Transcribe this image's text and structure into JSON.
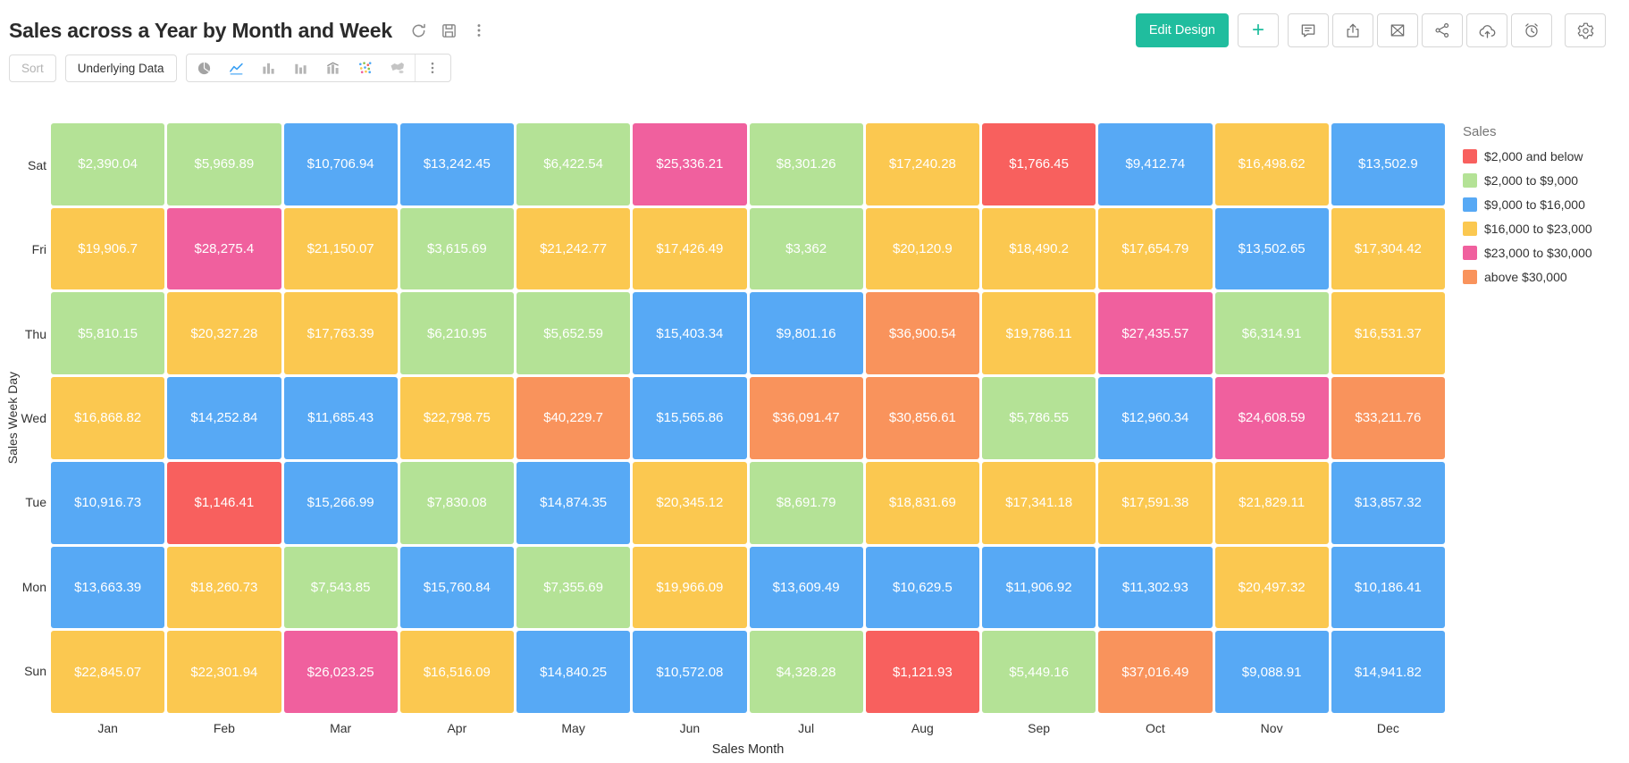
{
  "header": {
    "title": "Sales across a Year by Month and Week",
    "title_action_icons": [
      "refresh-icon",
      "save-icon",
      "more-vertical-icon"
    ],
    "edit_design_label": "Edit Design",
    "add_label": "+",
    "action_icons": [
      "comment-icon",
      "export-icon",
      "email-icon",
      "share-icon",
      "cloud-upload-icon",
      "schedule-icon",
      "settings-icon"
    ],
    "accent_color": "#20BD9E"
  },
  "toolbar": {
    "sort_label": "Sort",
    "underlying_data_label": "Underlying Data",
    "chart_type_icons": [
      "pie-chart-icon",
      "line-chart-icon",
      "bar-chart-icon",
      "clustered-bar-icon",
      "combo-chart-icon",
      "scatter-plot-icon",
      "map-chart-icon",
      "more-vertical-icon"
    ],
    "active_chart_type": "line-chart-icon"
  },
  "chart_data": {
    "type": "heatmap",
    "title": "Sales across a Year by Month and Week",
    "xlabel": "Sales Month",
    "ylabel": "Sales Week Day",
    "legend_title": "Sales",
    "legend_position": "right",
    "x": [
      "Jan",
      "Feb",
      "Mar",
      "Apr",
      "May",
      "Jun",
      "Jul",
      "Aug",
      "Sep",
      "Oct",
      "Nov",
      "Dec"
    ],
    "y": [
      "Sat",
      "Fri",
      "Thu",
      "Wed",
      "Tue",
      "Mon",
      "Sun"
    ],
    "bins": {
      "limits": [
        2000,
        9000,
        16000,
        23000,
        30000
      ],
      "colors": [
        "#F8605E",
        "#B4E296",
        "#57A9F5",
        "#FBC850",
        "#F0609E",
        "#F9935C"
      ],
      "labels": [
        "$2,000 and below",
        "$2,000 to $9,000",
        "$9,000 to $16,000",
        "$16,000 to $23,000",
        "$23,000 to $30,000",
        "above $30,000"
      ]
    },
    "series": [
      {
        "name": "Sat",
        "values": [
          2390.04,
          5969.89,
          10706.94,
          13242.45,
          6422.54,
          25336.21,
          8301.26,
          17240.28,
          1766.45,
          9412.74,
          16498.62,
          13502.9
        ],
        "labels": [
          "$2,390.04",
          "$5,969.89",
          "$10,706.94",
          "$13,242.45",
          "$6,422.54",
          "$25,336.21",
          "$8,301.26",
          "$17,240.28",
          "$1,766.45",
          "$9,412.74",
          "$16,498.62",
          "$13,502.9"
        ]
      },
      {
        "name": "Fri",
        "values": [
          19906.7,
          28275.4,
          21150.07,
          3615.69,
          21242.77,
          17426.49,
          3362,
          20120.9,
          18490.2,
          17654.79,
          13502.65,
          17304.42
        ],
        "labels": [
          "$19,906.7",
          "$28,275.4",
          "$21,150.07",
          "$3,615.69",
          "$21,242.77",
          "$17,426.49",
          "$3,362",
          "$20,120.9",
          "$18,490.2",
          "$17,654.79",
          "$13,502.65",
          "$17,304.42"
        ]
      },
      {
        "name": "Thu",
        "values": [
          5810.15,
          20327.28,
          17763.39,
          6210.95,
          5652.59,
          15403.34,
          9801.16,
          36900.54,
          19786.11,
          27435.57,
          6314.91,
          16531.37
        ],
        "labels": [
          "$5,810.15",
          "$20,327.28",
          "$17,763.39",
          "$6,210.95",
          "$5,652.59",
          "$15,403.34",
          "$9,801.16",
          "$36,900.54",
          "$19,786.11",
          "$27,435.57",
          "$6,314.91",
          "$16,531.37"
        ]
      },
      {
        "name": "Wed",
        "values": [
          16868.82,
          14252.84,
          11685.43,
          22798.75,
          40229.7,
          15565.86,
          36091.47,
          30856.61,
          5786.55,
          12960.34,
          24608.59,
          33211.76
        ],
        "labels": [
          "$16,868.82",
          "$14,252.84",
          "$11,685.43",
          "$22,798.75",
          "$40,229.7",
          "$15,565.86",
          "$36,091.47",
          "$30,856.61",
          "$5,786.55",
          "$12,960.34",
          "$24,608.59",
          "$33,211.76"
        ]
      },
      {
        "name": "Tue",
        "values": [
          10916.73,
          1146.41,
          15266.99,
          7830.08,
          14874.35,
          20345.12,
          8691.79,
          18831.69,
          17341.18,
          17591.38,
          21829.11,
          13857.32
        ],
        "labels": [
          "$10,916.73",
          "$1,146.41",
          "$15,266.99",
          "$7,830.08",
          "$14,874.35",
          "$20,345.12",
          "$8,691.79",
          "$18,831.69",
          "$17,341.18",
          "$17,591.38",
          "$21,829.11",
          "$13,857.32"
        ]
      },
      {
        "name": "Mon",
        "values": [
          13663.39,
          18260.73,
          7543.85,
          15760.84,
          7355.69,
          19966.09,
          13609.49,
          10629.5,
          11906.92,
          11302.93,
          20497.32,
          10186.41
        ],
        "labels": [
          "$13,663.39",
          "$18,260.73",
          "$7,543.85",
          "$15,760.84",
          "$7,355.69",
          "$19,966.09",
          "$13,609.49",
          "$10,629.5",
          "$11,906.92",
          "$11,302.93",
          "$20,497.32",
          "$10,186.41"
        ]
      },
      {
        "name": "Sun",
        "values": [
          22845.07,
          22301.94,
          26023.25,
          16516.09,
          14840.25,
          10572.08,
          4328.28,
          1121.93,
          5449.16,
          37016.49,
          9088.91,
          14941.82
        ],
        "labels": [
          "$22,845.07",
          "$22,301.94",
          "$26,023.25",
          "$16,516.09",
          "$14,840.25",
          "$10,572.08",
          "$4,328.28",
          "$1,121.93",
          "$5,449.16",
          "$37,016.49",
          "$9,088.91",
          "$14,941.82"
        ]
      }
    ]
  }
}
